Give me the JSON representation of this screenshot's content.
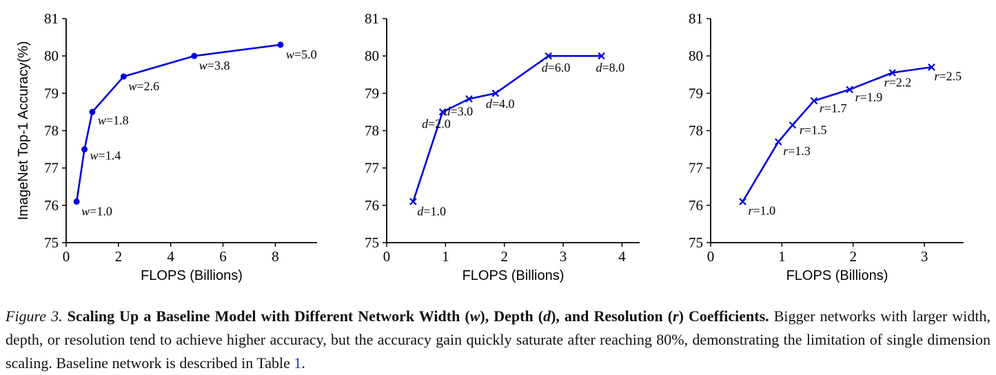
{
  "colors": {
    "line": "#0101dd",
    "link": "#2233cc",
    "text": "#111111"
  },
  "chart_data": [
    {
      "type": "line",
      "name": "width-scaling",
      "xlabel": "FLOPS (Billions)",
      "ylabel": "ImageNet Top-1 Accuracy(%)",
      "xlim": [
        0,
        9.6
      ],
      "ylim": [
        75,
        81
      ],
      "xticks": [
        0,
        2,
        4,
        6,
        8
      ],
      "yticks": [
        75,
        76,
        77,
        78,
        79,
        80,
        81
      ],
      "marker": "circle",
      "color": "#0101dd",
      "points": [
        {
          "x": 0.4,
          "y": 76.1,
          "label": "w=1.0",
          "offset": [
            7,
            20
          ]
        },
        {
          "x": 0.7,
          "y": 77.5,
          "label": "w=1.4",
          "offset": [
            8,
            15
          ]
        },
        {
          "x": 1.0,
          "y": 78.5,
          "label": "w=1.8",
          "offset": [
            8,
            18
          ]
        },
        {
          "x": 2.2,
          "y": 79.45,
          "label": "w=2.6",
          "offset": [
            7,
            20
          ]
        },
        {
          "x": 4.9,
          "y": 80.0,
          "label": "w=3.8",
          "offset": [
            7,
            20
          ]
        },
        {
          "x": 8.2,
          "y": 80.3,
          "label": "w=5.0",
          "offset": [
            8,
            20
          ]
        }
      ]
    },
    {
      "type": "line",
      "name": "depth-scaling",
      "xlabel": "FLOPS (Billions)",
      "ylabel": "",
      "xlim": [
        0,
        4.3
      ],
      "ylim": [
        75,
        81
      ],
      "xticks": [
        0,
        1,
        2,
        3,
        4
      ],
      "yticks": [
        75,
        76,
        77,
        78,
        79,
        80,
        81
      ],
      "marker": "x",
      "color": "#0101dd",
      "points": [
        {
          "x": 0.45,
          "y": 76.1,
          "label": "d=1.0",
          "offset": [
            6,
            20
          ]
        },
        {
          "x": 0.95,
          "y": 78.5,
          "label": "d=2.0",
          "offset": [
            -30,
            23
          ]
        },
        {
          "x": 1.4,
          "y": 78.85,
          "label": "d=3.0",
          "offset": [
            -36,
            24
          ]
        },
        {
          "x": 1.85,
          "y": 79.0,
          "label": "d=4.0",
          "offset": [
            -14,
            21
          ]
        },
        {
          "x": 2.75,
          "y": 80.0,
          "label": "d=6.0",
          "offset": [
            -10,
            23
          ]
        },
        {
          "x": 3.65,
          "y": 80.0,
          "label": "d=8.0",
          "offset": [
            -8,
            23
          ]
        }
      ]
    },
    {
      "type": "line",
      "name": "resolution-scaling",
      "xlabel": "FLOPS (Billions)",
      "ylabel": "",
      "xlim": [
        0,
        3.55
      ],
      "ylim": [
        75,
        81
      ],
      "xticks": [
        0,
        1,
        2,
        3
      ],
      "yticks": [
        75,
        76,
        77,
        78,
        79,
        80,
        81
      ],
      "marker": "x",
      "color": "#0101dd",
      "points": [
        {
          "x": 0.45,
          "y": 76.1,
          "label": "r=1.0",
          "offset": [
            8,
            19
          ]
        },
        {
          "x": 0.95,
          "y": 77.7,
          "label": "r=1.3",
          "offset": [
            7,
            19
          ]
        },
        {
          "x": 1.15,
          "y": 78.15,
          "label": "r=1.5",
          "offset": [
            10,
            13
          ]
        },
        {
          "x": 1.45,
          "y": 78.8,
          "label": "r=1.7",
          "offset": [
            8,
            17
          ]
        },
        {
          "x": 1.95,
          "y": 79.1,
          "label": "r=1.9",
          "offset": [
            8,
            17
          ]
        },
        {
          "x": 2.55,
          "y": 79.55,
          "label": "r=2.2",
          "offset": [
            -12,
            20
          ]
        },
        {
          "x": 3.1,
          "y": 79.7,
          "label": "r=2.5",
          "offset": [
            4,
            19
          ]
        }
      ]
    }
  ],
  "caption": {
    "segments": [
      {
        "text": "Figure 3.",
        "style": "italic"
      },
      {
        "text": " ",
        "style": "plain"
      },
      {
        "text": "Scaling Up a Baseline Model with Different Network Width (",
        "style": "bold"
      },
      {
        "text": "w",
        "style": "bold-italic"
      },
      {
        "text": "), Depth (",
        "style": "bold"
      },
      {
        "text": "d",
        "style": "bold-italic"
      },
      {
        "text": "), and Resolution (",
        "style": "bold"
      },
      {
        "text": "r",
        "style": "bold-italic"
      },
      {
        "text": ") Coefficients.",
        "style": "bold"
      },
      {
        "text": " Bigger networks with larger width, depth, or resolution tend to achieve higher accuracy, but the accuracy gain quickly saturate after reaching 80%, demonstrating the limitation of single dimension scaling. Baseline network is described in Table ",
        "style": "plain"
      },
      {
        "text": "1",
        "style": "link"
      },
      {
        "text": ".",
        "style": "plain"
      }
    ]
  }
}
